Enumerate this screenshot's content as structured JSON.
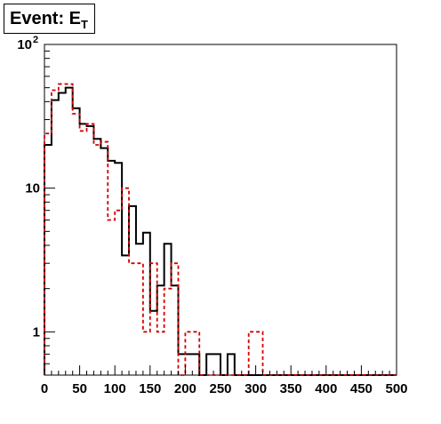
{
  "chart_data": {
    "type": "histogram",
    "title": "Event: E",
    "title_subscript": "T",
    "xlabel": "",
    "ylabel": "",
    "xlim": [
      0,
      500
    ],
    "ylim": [
      0.5,
      100
    ],
    "yscale": "log",
    "grid": false,
    "legend": "none",
    "x_tick_labels": [
      "0",
      "50",
      "100",
      "150",
      "200",
      "250",
      "300",
      "350",
      "400",
      "450",
      "500"
    ],
    "y_tick_labels": [
      {
        "value": 1,
        "label": "1"
      },
      {
        "value": 10,
        "label": "10"
      },
      {
        "value": 100,
        "label": "10",
        "exponent": "2"
      }
    ],
    "bin_width": 10,
    "series": [
      {
        "color": "#000000",
        "style": "solid",
        "bin_edges": [
          0,
          10,
          20,
          30,
          40,
          50,
          60,
          70,
          80,
          90,
          100,
          110,
          120,
          130,
          140,
          150,
          160,
          170,
          180,
          190,
          200,
          210,
          220,
          230,
          240,
          250,
          260,
          270,
          280,
          290,
          300,
          310,
          320,
          330,
          340,
          350,
          360,
          370,
          380,
          390,
          400,
          410,
          420,
          430,
          440,
          450,
          460,
          470,
          480,
          490,
          500
        ],
        "values": [
          20,
          41,
          46,
          50,
          36,
          28,
          27,
          22,
          19,
          15.5,
          15,
          3.4,
          7.5,
          4.1,
          4.9,
          1.4,
          2.1,
          4.1,
          2.1,
          0.7,
          0.7,
          0.7,
          0,
          0.7,
          0.7,
          0,
          0.7,
          0,
          0,
          0,
          0,
          0,
          0,
          0,
          0,
          0,
          0,
          0,
          0,
          0,
          0,
          0,
          0,
          0,
          0,
          0,
          0,
          0,
          0,
          0
        ]
      },
      {
        "color": "#d40000",
        "style": "dashed",
        "bin_edges": [
          0,
          10,
          20,
          30,
          40,
          50,
          60,
          70,
          80,
          90,
          100,
          110,
          120,
          130,
          140,
          150,
          160,
          170,
          180,
          190,
          200,
          210,
          220,
          230,
          240,
          250,
          260,
          270,
          280,
          290,
          300,
          310,
          320,
          330,
          340,
          350,
          360,
          370,
          380,
          390,
          400,
          410,
          420,
          430,
          440,
          450,
          460,
          470,
          480,
          490,
          500
        ],
        "values": [
          24,
          48,
          53,
          53,
          33,
          25,
          28,
          20,
          21,
          6,
          7,
          10,
          3,
          3,
          1,
          3,
          1,
          2,
          3,
          0.5,
          1,
          1,
          0,
          0,
          0,
          0,
          0,
          0,
          0,
          1,
          1,
          0,
          0,
          0,
          0,
          0,
          0,
          0,
          0,
          0,
          0,
          0,
          0,
          0,
          0,
          0,
          0,
          0,
          0,
          0
        ]
      }
    ]
  }
}
